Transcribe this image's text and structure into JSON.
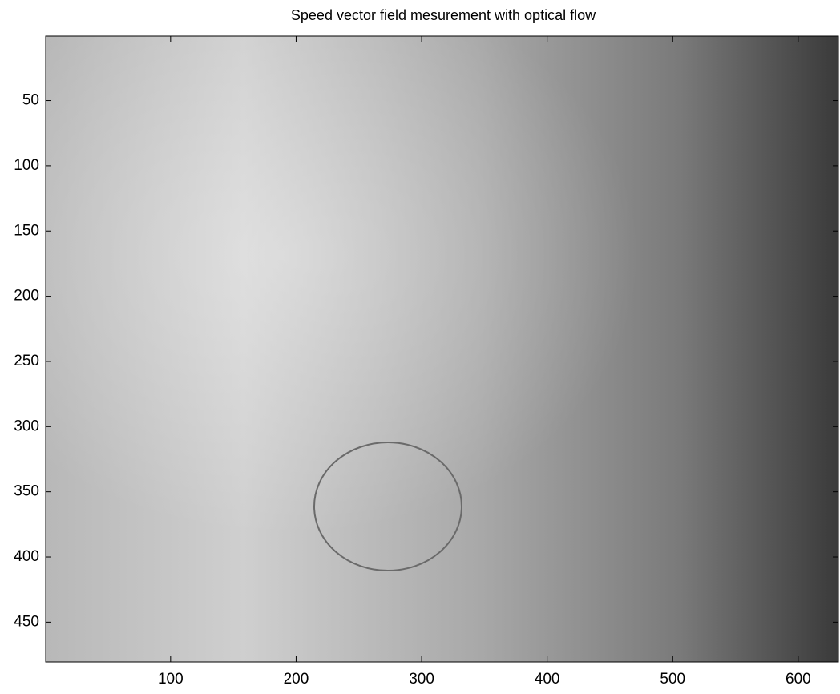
{
  "chart_data": {
    "type": "image",
    "title": "Speed vector field mesurement with optical flow",
    "xlim": [
      0.5,
      632
    ],
    "ylim": [
      0.5,
      480.5
    ],
    "y_direction": "reverse",
    "xticks": [
      100,
      200,
      300,
      400,
      500,
      600
    ],
    "yticks": [
      50,
      100,
      150,
      200,
      250,
      300,
      350,
      400,
      450
    ]
  }
}
